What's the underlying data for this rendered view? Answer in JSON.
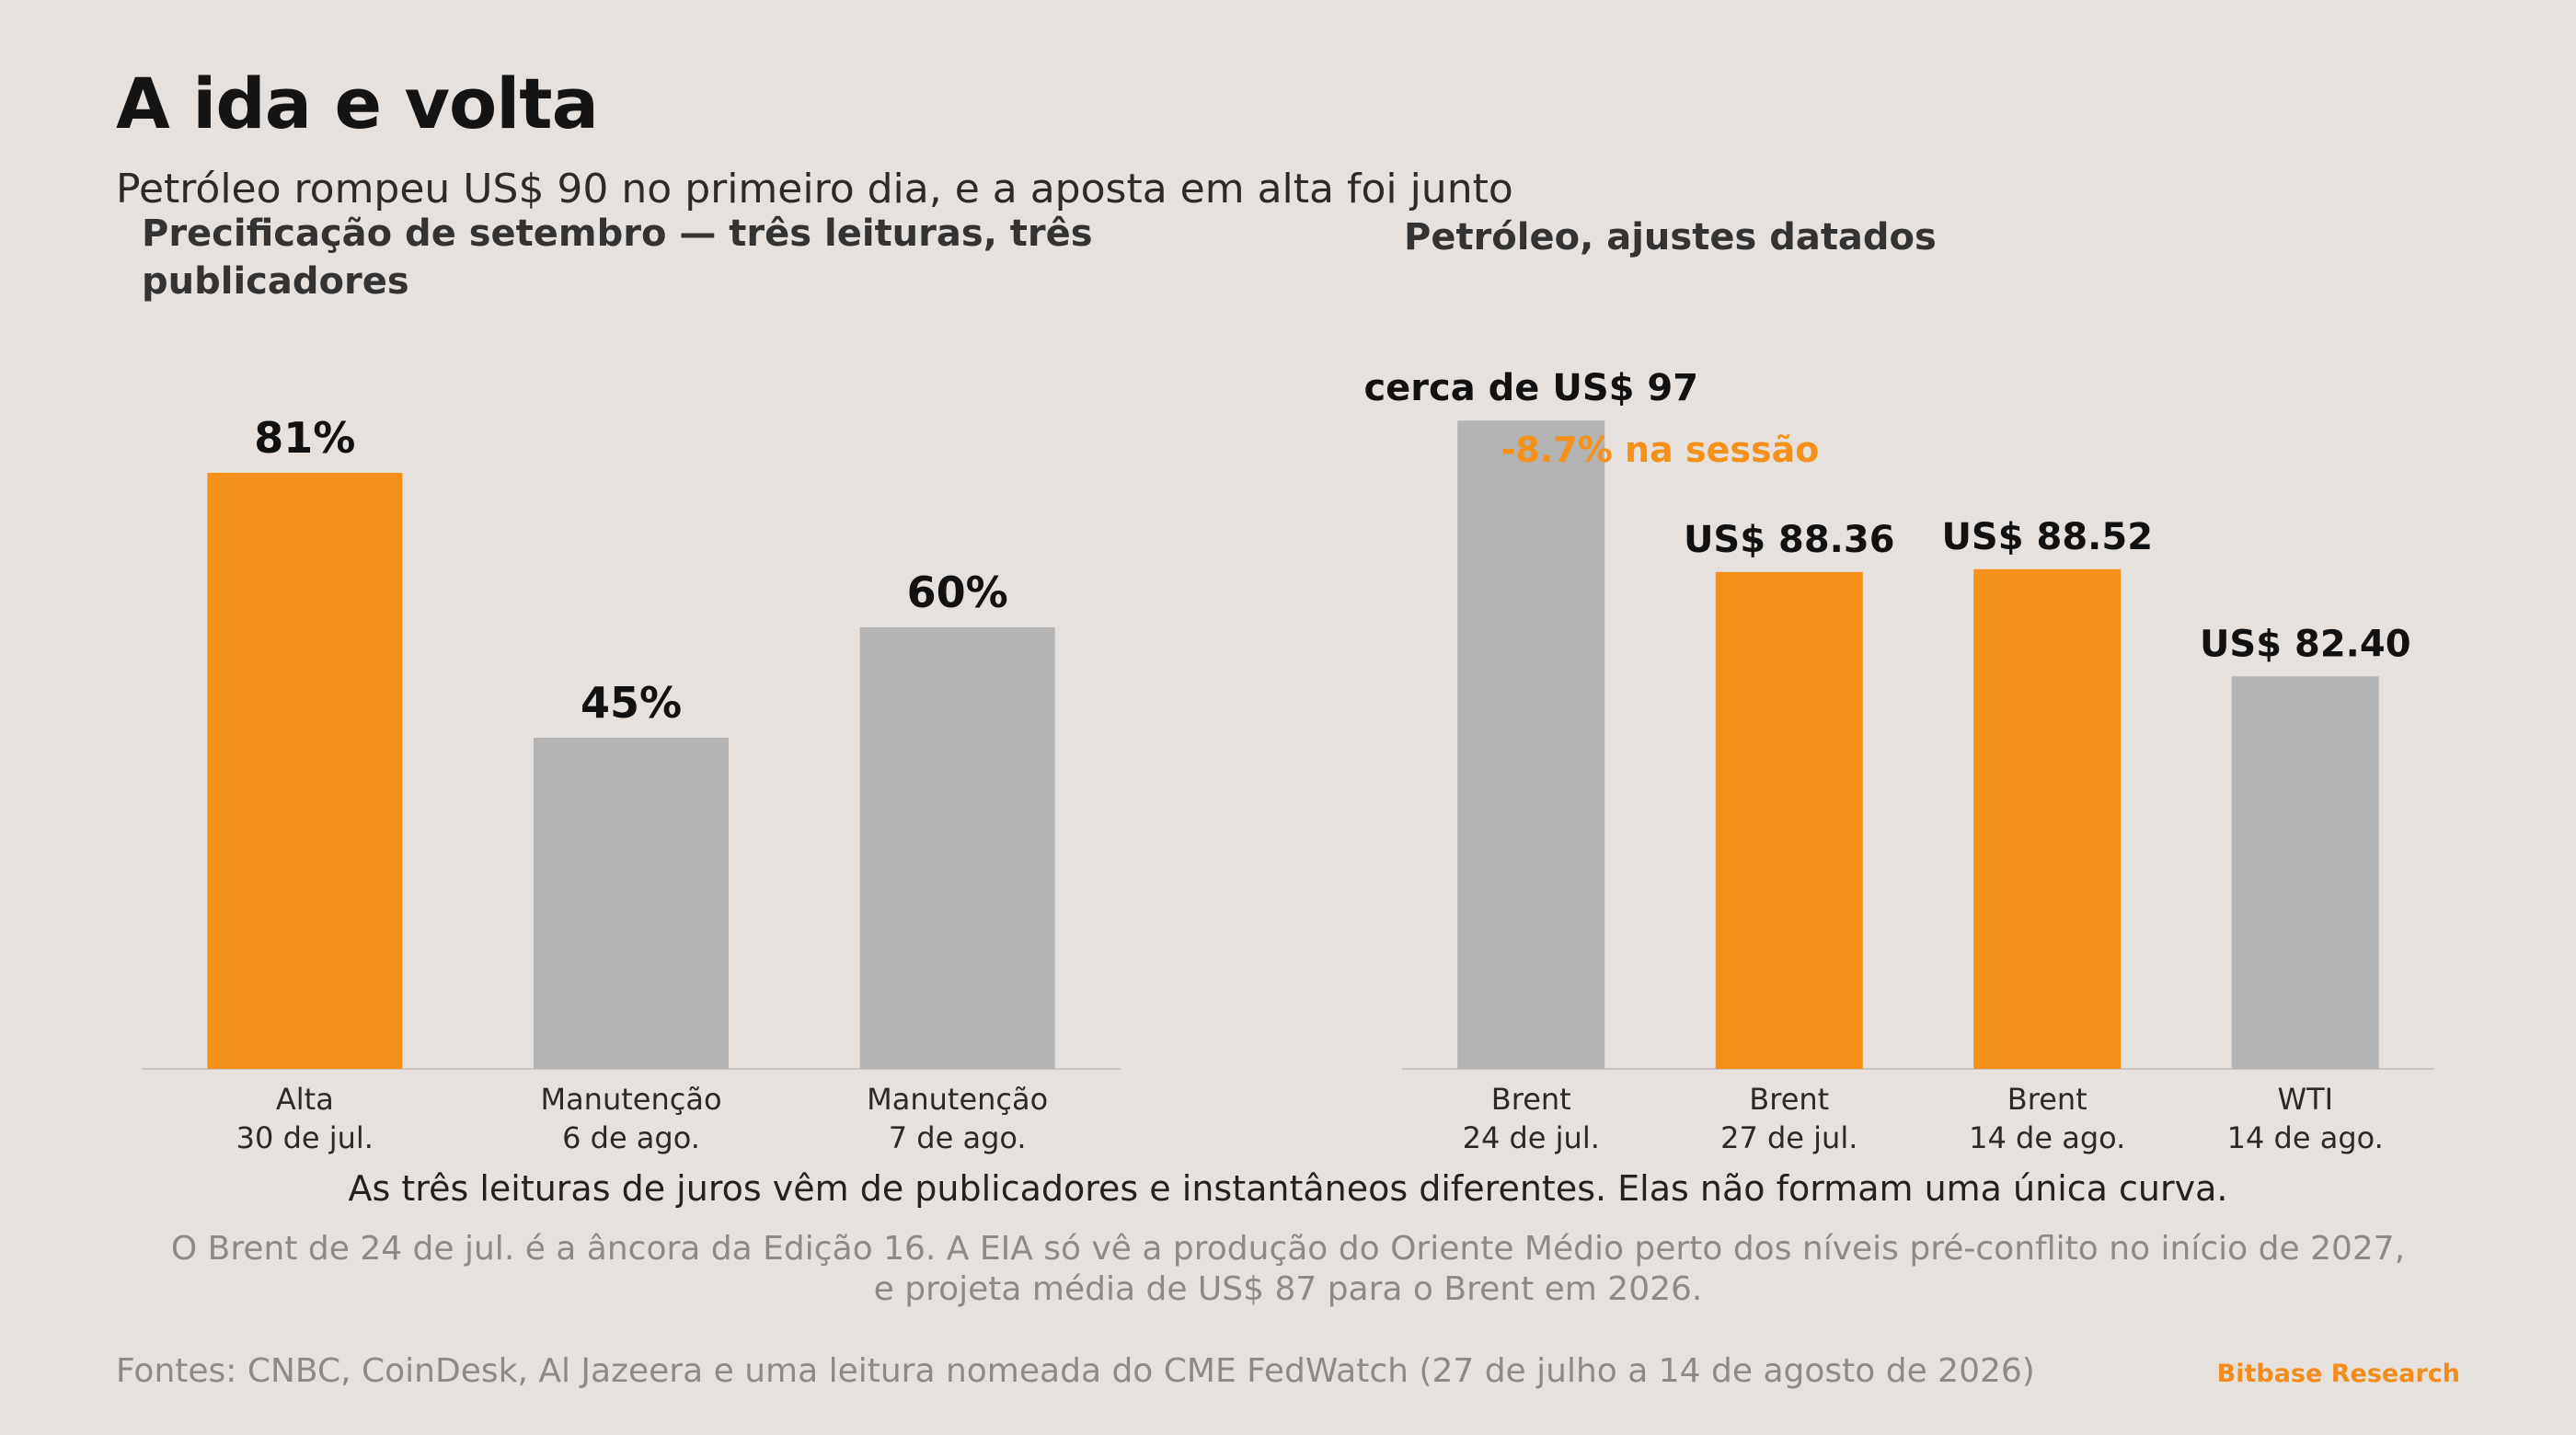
{
  "header": {
    "title": "A ida e volta",
    "subtitle": "Petróleo rompeu US$ 90 no primeiro dia, e a aposta em alta foi junto"
  },
  "colors": {
    "accent": "#f59118",
    "neutral": "#b3b3b3",
    "background": "#e6e1dc",
    "baseline": "#c9c4bf"
  },
  "chart_data": [
    {
      "type": "bar",
      "title": "Precificação de setembro — três leituras, três publicadores",
      "categories": [
        [
          "Alta",
          "30 de jul."
        ],
        [
          "Manutenção",
          "6 de ago."
        ],
        [
          "Manutenção",
          "7 de ago."
        ]
      ],
      "values": [
        81,
        45,
        60
      ],
      "value_labels": [
        "81%",
        "45%",
        "60%"
      ],
      "highlight": [
        true,
        false,
        false
      ],
      "ylim": [
        0,
        100
      ]
    },
    {
      "type": "bar",
      "title": "Petróleo, ajustes datados",
      "categories": [
        [
          "Brent",
          "24 de jul."
        ],
        [
          "Brent",
          "27 de jul."
        ],
        [
          "Brent",
          "14 de ago."
        ],
        [
          "WTI",
          "14 de ago."
        ]
      ],
      "values": [
        97,
        88.36,
        88.52,
        82.4
      ],
      "value_labels": [
        "cerca de US$ 97",
        "US$ 88.36",
        "US$ 88.52",
        "US$ 82.40"
      ],
      "highlight": [
        false,
        true,
        true,
        false
      ],
      "annotation": "-8.7% na sessão",
      "ylim": [
        60,
        102
      ]
    }
  ],
  "notes": {
    "note1": "As três leituras de juros vêm de publicadores e instantâneos diferentes. Elas não formam uma única curva.",
    "note2": "O Brent de 24 de jul. é a âncora da Edição 16. A EIA só vê a produção do Oriente Médio perto dos níveis pré-conflito no início de 2027, e projeta média de US$ 87 para o Brent em 2026."
  },
  "footer": {
    "sources": "Fontes: CNBC, CoinDesk, Al Jazeera e uma leitura nomeada do CME FedWatch (27 de julho a 14 de agosto de 2026)",
    "brand": "Bitbase Research"
  }
}
